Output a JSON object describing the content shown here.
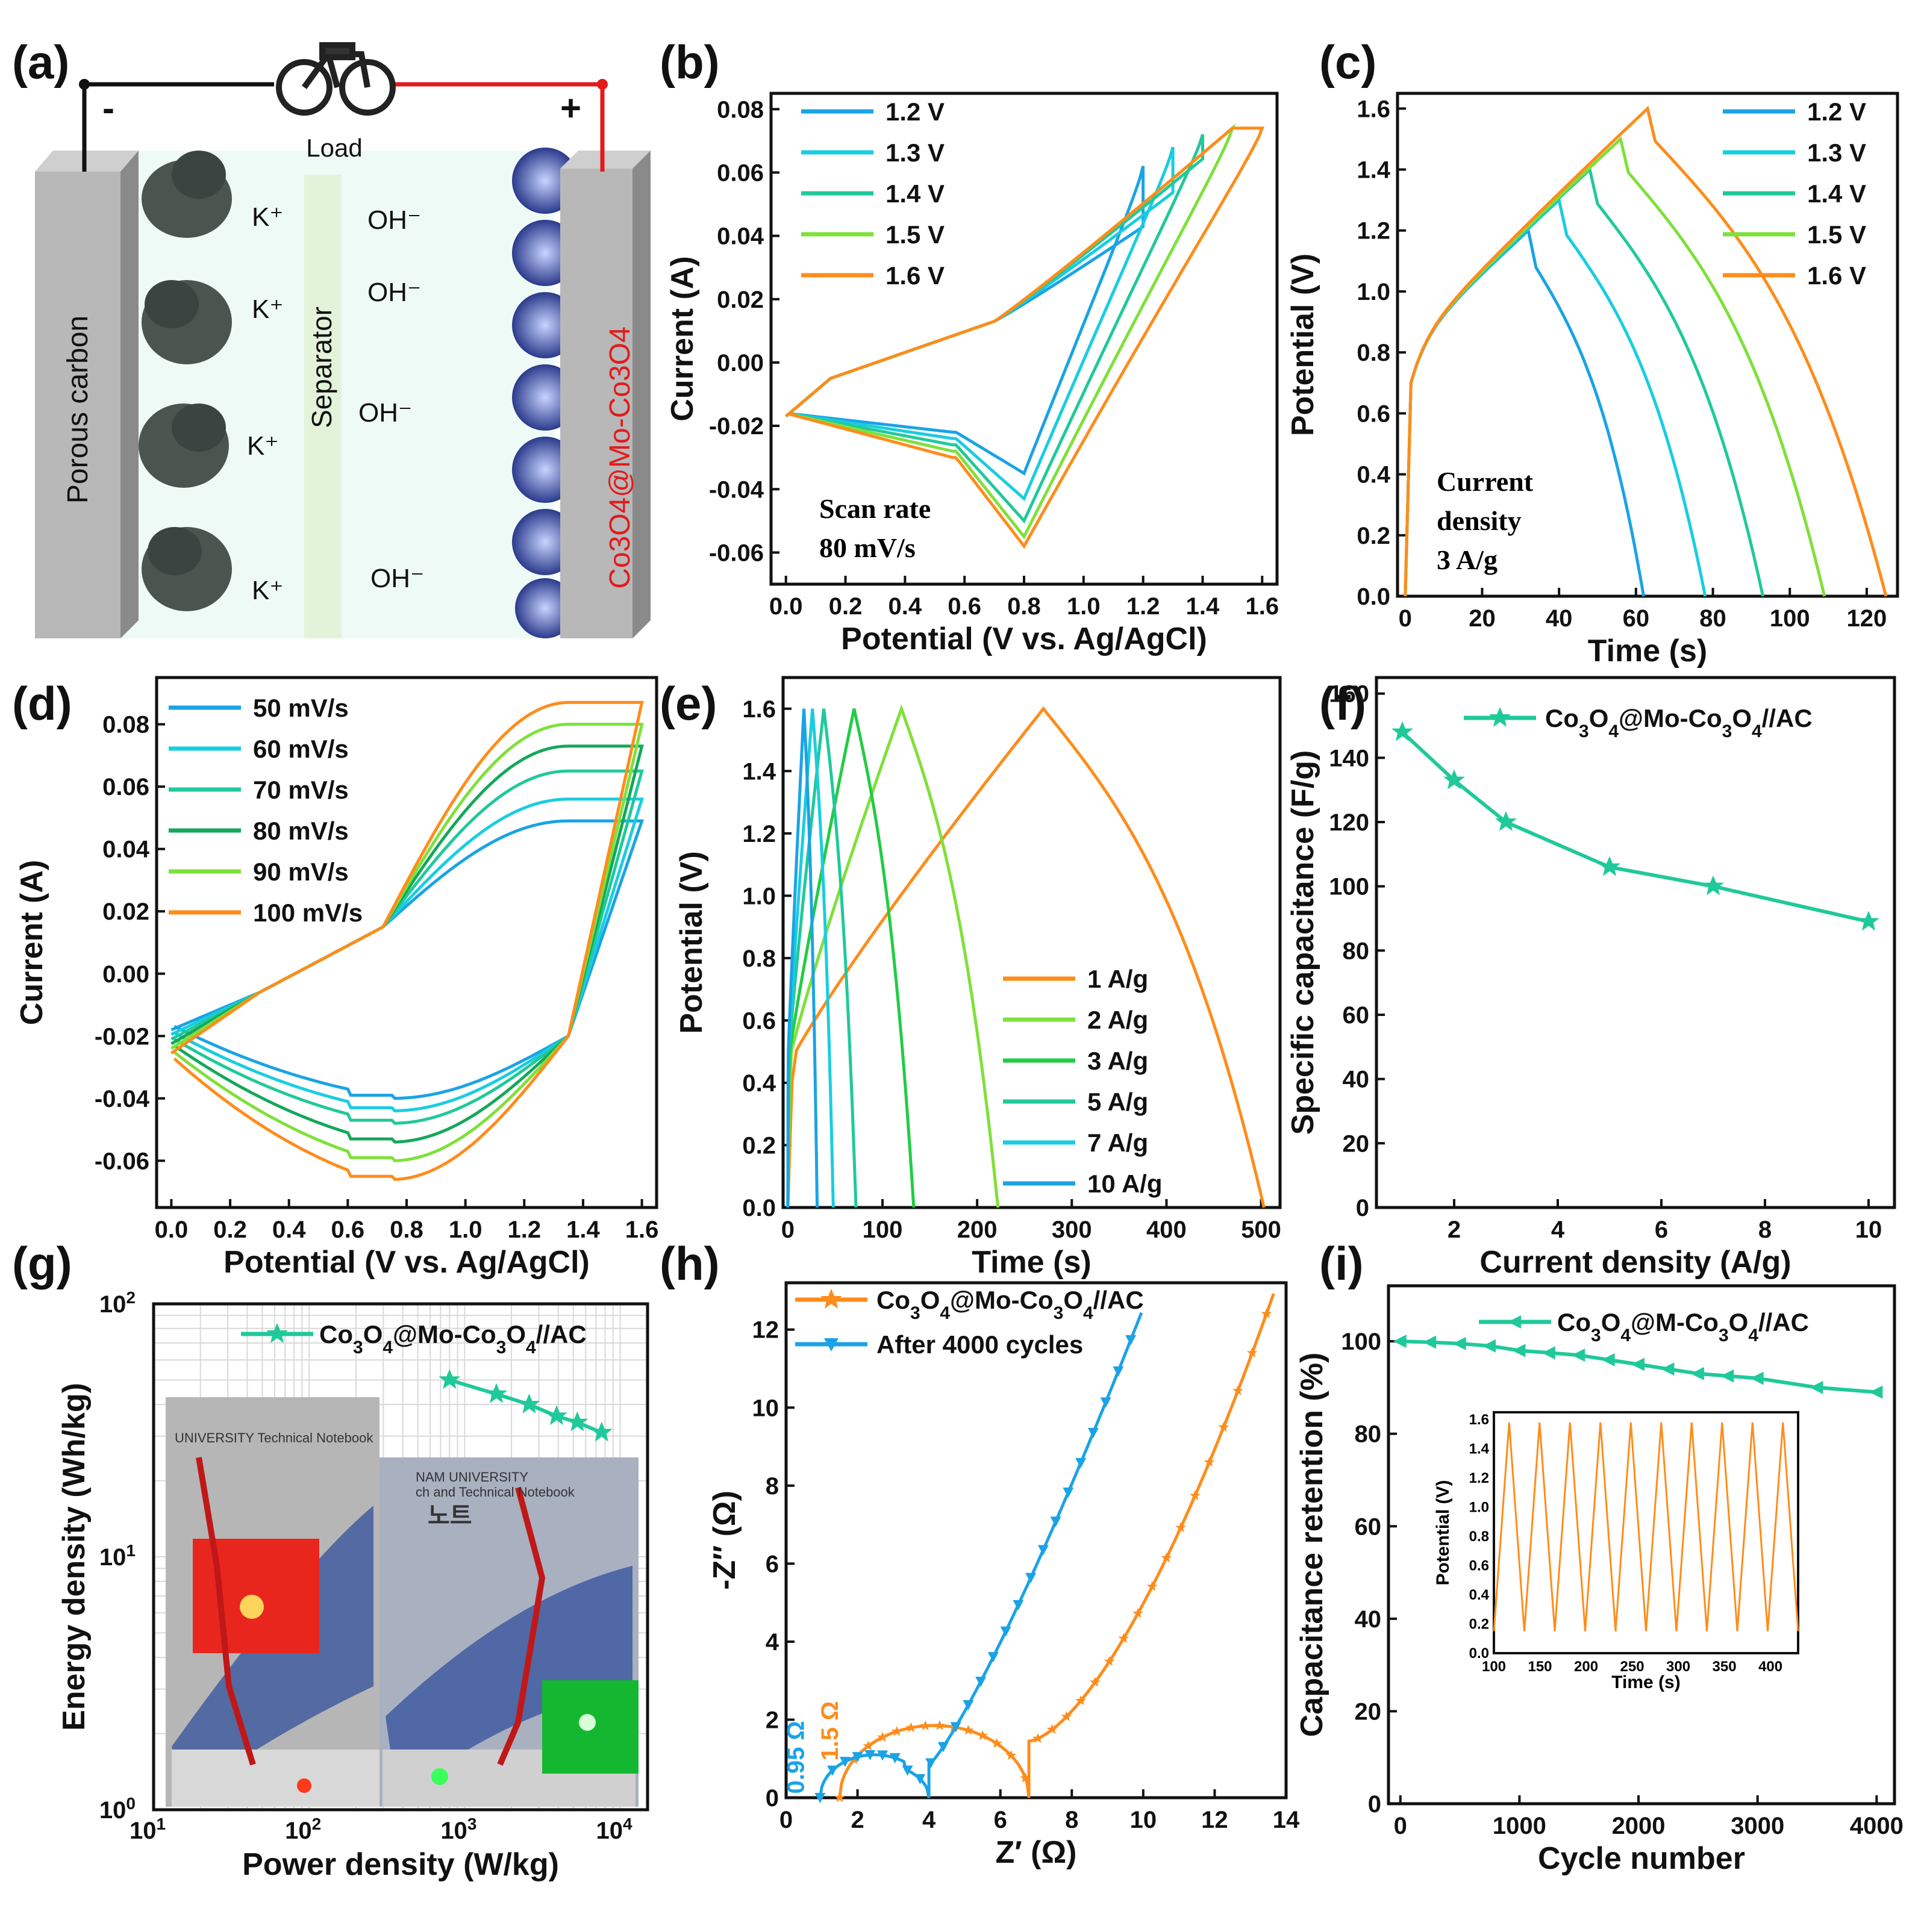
{
  "colors": {
    "c12": "#1aa3e6",
    "c13": "#19cde0",
    "c14": "#20c99a",
    "c15": "#7fe03a",
    "c16": "#ff8c1a",
    "s50": "#1aa3e6",
    "s60": "#19cde0",
    "s70": "#20c99a",
    "s80": "#14a85a",
    "s90": "#7fe03a",
    "s100": "#ff8c1a",
    "teal": "#20c99a",
    "orange": "#ff8c1a",
    "blue": "#1aa3e6",
    "red": "#e31a1c"
  },
  "panels": {
    "a": {
      "label": "(a)",
      "minus": "-",
      "plus": "+",
      "load": "Load",
      "left_electrode": "Porous carbon",
      "separator": "Separator",
      "right_electrode": "Co3O4@Mo-Co3O4",
      "ion_k": "K⁺",
      "ion_oh": "OH⁻",
      "icon": "bicycle-icon"
    },
    "b": {
      "label": "(b)",
      "note_line1": "Scan rate",
      "note_line2": "80 mV/s"
    },
    "c": {
      "label": "(c)",
      "note_line1": "Current",
      "note_line2": "density",
      "note_line3": "3 A/g"
    },
    "d": {
      "label": "(d)"
    },
    "e": {
      "label": "(e)"
    },
    "f": {
      "label": "(f)"
    },
    "g": {
      "label": "(g)",
      "photo_left_caption": "UNIVERSITY Technical Notebook",
      "photo_right_caption1": "NAM UNIVERSITY",
      "photo_right_caption2": "ch and Technical Notebook",
      "photo_right_caption3": "노트"
    },
    "h": {
      "label": "(h)",
      "r1": "0.95 Ω",
      "r2": "1.5 Ω"
    },
    "i": {
      "label": "(i)"
    }
  },
  "chart_data": [
    {
      "id": "b",
      "type": "line",
      "title": "",
      "xlabel": "Potential (V vs. Ag/AgCl)",
      "ylabel": "Current (A)",
      "xlim": [
        -0.05,
        1.65
      ],
      "ylim": [
        -0.07,
        0.085
      ],
      "xticks": [
        "0.0",
        "0.2",
        "0.4",
        "0.6",
        "0.8",
        "1.0",
        "1.2",
        "1.4",
        "1.6"
      ],
      "yticks": [
        "-0.06",
        "-0.04",
        "-0.02",
        "0.00",
        "0.02",
        "0.04",
        "0.06",
        "0.08"
      ],
      "legend": "top-left",
      "series": [
        {
          "name": "1.2 V",
          "vmax": 1.2,
          "upper_end": 0.062,
          "lower_min": -0.035
        },
        {
          "name": "1.3 V",
          "vmax": 1.3,
          "upper_end": 0.068,
          "lower_min": -0.043
        },
        {
          "name": "1.4 V",
          "vmax": 1.4,
          "upper_end": 0.072,
          "lower_min": -0.05
        },
        {
          "name": "1.5 V",
          "vmax": 1.5,
          "upper_end": 0.074,
          "lower_min": -0.055
        },
        {
          "name": "1.6 V",
          "vmax": 1.6,
          "upper_end": 0.074,
          "lower_min": -0.058
        }
      ]
    },
    {
      "id": "c",
      "type": "line",
      "xlabel": "Time (s)",
      "ylabel": "Potential (V)",
      "xlim": [
        -2,
        128
      ],
      "ylim": [
        0,
        1.65
      ],
      "xticks": [
        "0",
        "20",
        "40",
        "60",
        "80",
        "100",
        "120"
      ],
      "yticks": [
        "0.0",
        "0.2",
        "0.4",
        "0.6",
        "0.8",
        "1.0",
        "1.2",
        "1.4",
        "1.6"
      ],
      "legend": "top-right",
      "series": [
        {
          "name": "1.2 V",
          "vmax": 1.2,
          "t_charge": 32,
          "t_end": 62
        },
        {
          "name": "1.3 V",
          "vmax": 1.3,
          "t_charge": 40,
          "t_end": 78
        },
        {
          "name": "1.4 V",
          "vmax": 1.4,
          "t_charge": 48,
          "t_end": 93
        },
        {
          "name": "1.5 V",
          "vmax": 1.5,
          "t_charge": 56,
          "t_end": 109
        },
        {
          "name": "1.6 V",
          "vmax": 1.6,
          "t_charge": 63,
          "t_end": 125
        }
      ]
    },
    {
      "id": "d",
      "type": "line",
      "xlabel": "Potential (V vs. Ag/AgCl)",
      "ylabel": "Current (A)",
      "xlim": [
        -0.05,
        1.65
      ],
      "ylim": [
        -0.075,
        0.095
      ],
      "xticks": [
        "0.0",
        "0.2",
        "0.4",
        "0.6",
        "0.8",
        "1.0",
        "1.2",
        "1.4",
        "1.6"
      ],
      "yticks": [
        "-0.06",
        "-0.04",
        "-0.02",
        "0.00",
        "0.02",
        "0.04",
        "0.06",
        "0.08"
      ],
      "legend": "top-left",
      "series": [
        {
          "name": "50 mV/s",
          "upper_plateau": 0.049,
          "lower_min": -0.04
        },
        {
          "name": "60 mV/s",
          "upper_plateau": 0.056,
          "lower_min": -0.044
        },
        {
          "name": "70 mV/s",
          "upper_plateau": 0.065,
          "lower_min": -0.048
        },
        {
          "name": "80 mV/s",
          "upper_plateau": 0.073,
          "lower_min": -0.054
        },
        {
          "name": "90 mV/s",
          "upper_plateau": 0.08,
          "lower_min": -0.06
        },
        {
          "name": "100 mV/s",
          "upper_plateau": 0.087,
          "lower_min": -0.066
        }
      ]
    },
    {
      "id": "e",
      "type": "line",
      "xlabel": "Time (s)",
      "ylabel": "Potential (V)",
      "xlim": [
        -5,
        520
      ],
      "ylim": [
        0,
        1.7
      ],
      "xticks": [
        "0",
        "100",
        "200",
        "300",
        "400",
        "500"
      ],
      "yticks": [
        "0.0",
        "0.2",
        "0.4",
        "0.6",
        "0.8",
        "1.0",
        "1.2",
        "1.4",
        "1.6"
      ],
      "legend": "bottom-right",
      "series": [
        {
          "name": "1 A/g",
          "t_charge": 270,
          "t_end": 503
        },
        {
          "name": "2 A/g",
          "t_charge": 120,
          "t_end": 222
        },
        {
          "name": "3 A/g",
          "t_charge": 70,
          "t_end": 133
        },
        {
          "name": "5 A/g",
          "t_charge": 38,
          "t_end": 72
        },
        {
          "name": "7 A/g",
          "t_charge": 26,
          "t_end": 48
        },
        {
          "name": "10 A/g",
          "t_charge": 17,
          "t_end": 31
        }
      ]
    },
    {
      "id": "f",
      "type": "line",
      "xlabel": "Current density (A/g)",
      "ylabel": "Specific capacitance (F/g)",
      "xlim": [
        0.5,
        10.5
      ],
      "ylim": [
        0,
        165
      ],
      "xticks": [
        "2",
        "4",
        "6",
        "8",
        "10"
      ],
      "yticks": [
        "0",
        "20",
        "40",
        "60",
        "80",
        "100",
        "120",
        "140",
        "160"
      ],
      "legend": "top-right",
      "series": [
        {
          "name": "Co3O4@Mo-Co3O4//AC",
          "x": [
            1,
            2,
            3,
            5,
            7,
            10
          ],
          "y": [
            148,
            133,
            120,
            106,
            100,
            89
          ]
        }
      ]
    },
    {
      "id": "g",
      "type": "scatter",
      "xlabel": "Power density (W/kg)",
      "ylabel": "Energy density (Wh/kg)",
      "xscale": "log",
      "yscale": "log",
      "xlim": [
        10,
        15000
      ],
      "ylim": [
        1,
        100
      ],
      "xticks": [
        "10",
        "10",
        "10"
      ],
      "xtick_exp": [
        "1",
        "2",
        "3",
        "4"
      ],
      "legend": "top-right",
      "series": [
        {
          "name": "Co3O4@Mo-Co3O4//AC",
          "x": [
            800,
            1600,
            2600,
            3900,
            5300,
            7600
          ],
          "y": [
            50,
            44,
            40,
            36,
            34,
            31
          ]
        }
      ]
    },
    {
      "id": "h",
      "type": "scatter",
      "xlabel": "Z′ (Ω)",
      "ylabel": "-Z″ (Ω)",
      "xlim": [
        0,
        14
      ],
      "ylim": [
        0,
        13.2
      ],
      "xticks": [
        "0",
        "2",
        "4",
        "6",
        "8",
        "10",
        "12",
        "14"
      ],
      "yticks": [
        "0",
        "2",
        "4",
        "6",
        "8",
        "10",
        "12"
      ],
      "legend": "top-left",
      "series": [
        {
          "name": "Co3O4@Mo-Co3O4//AC",
          "rs": 1.5
        },
        {
          "name": "After 4000 cycles",
          "rs": 0.95
        }
      ]
    },
    {
      "id": "i",
      "type": "line",
      "xlabel": "Cycle number",
      "ylabel": "Capacitance retention (%)",
      "xlim": [
        -100,
        4150
      ],
      "ylim": [
        0,
        112
      ],
      "xticks": [
        "0",
        "1000",
        "2000",
        "3000",
        "4000"
      ],
      "yticks": [
        "0",
        "20",
        "40",
        "60",
        "80",
        "100"
      ],
      "legend": "top-right",
      "series": [
        {
          "name": "Co3O4@M-Co3O4//AC",
          "x": [
            0,
            250,
            500,
            750,
            1000,
            1250,
            1500,
            1750,
            2000,
            2250,
            2500,
            2750,
            3000,
            3500,
            4000
          ],
          "y": [
            100,
            99.8,
            99.5,
            99,
            98,
            97.5,
            97,
            96,
            95,
            94,
            93,
            92.5,
            92,
            90,
            89
          ]
        }
      ],
      "inset": {
        "xlabel": "Time (s)",
        "ylabel": "Potential (V)",
        "xlim": [
          100,
          430
        ],
        "ylim": [
          0,
          1.65
        ],
        "xticks": [
          "100",
          "150",
          "200",
          "250",
          "300",
          "350",
          "400"
        ],
        "yticks": [
          "0.0",
          "0.2",
          "0.4",
          "0.6",
          "0.8",
          "1.0",
          "1.2",
          "1.4",
          "1.6"
        ],
        "period": 33,
        "vmax": 1.58,
        "vmin": 0.15
      }
    }
  ]
}
